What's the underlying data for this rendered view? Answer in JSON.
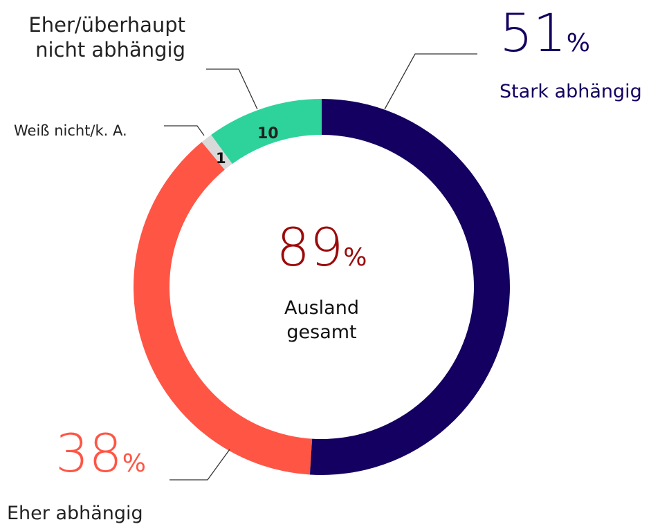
{
  "chart_data": {
    "type": "donut",
    "categories": [
      "Stark abhängig",
      "Eher abhängig",
      "Weiß nicht/k. A.",
      "Eher/überhaupt\nnicht abhängig"
    ],
    "values": [
      51,
      38,
      1,
      10
    ],
    "value_labels": [
      "51%",
      "38%",
      "1",
      "10"
    ],
    "colors": [
      "#140060",
      "#ff5545",
      "#d9d9d9",
      "#2ed39b"
    ],
    "center_label": "89%",
    "center_caption": "Ausland\ngesamt"
  }
}
